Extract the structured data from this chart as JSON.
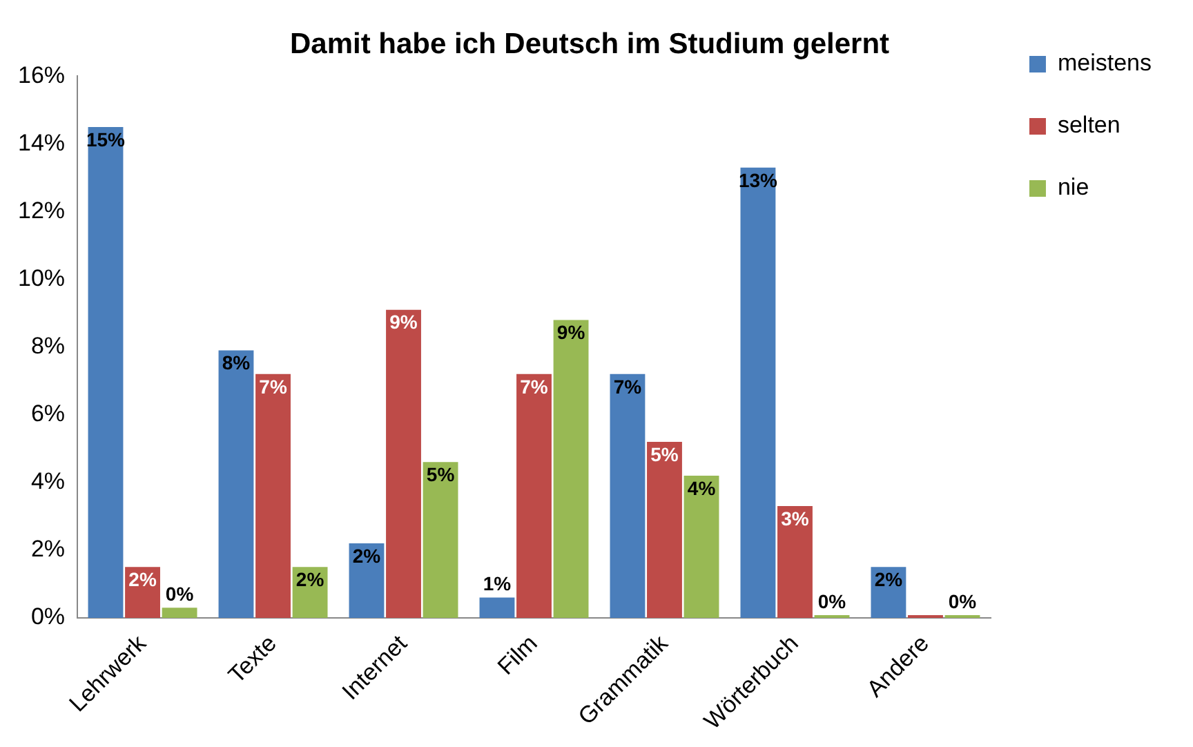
{
  "chart_data": {
    "type": "bar",
    "title": "Damit habe ich Deutsch im Studium gelernt",
    "categories": [
      "Lehrwerk",
      "Texte",
      "Internet",
      "Film",
      "Grammatik",
      "Wörterbuch",
      "Andere"
    ],
    "series": [
      {
        "name": "meistens",
        "color": "#4a7ebb",
        "values": [
          14.5,
          7.9,
          2.2,
          0.6,
          7.2,
          13.3,
          1.5
        ],
        "value_labels": [
          "15%",
          "8%",
          "2%",
          "1%",
          "7%",
          "13%",
          "2%"
        ]
      },
      {
        "name": "selten",
        "color": "#be4b48",
        "values": [
          1.5,
          7.2,
          9.1,
          7.2,
          5.2,
          3.3,
          0
        ],
        "value_labels": [
          "2%",
          "7%",
          "9%",
          "7%",
          "5%",
          "3%",
          null
        ]
      },
      {
        "name": "nie",
        "color": "#98b954",
        "values": [
          0.3,
          1.5,
          4.6,
          8.8,
          4.2,
          0,
          0
        ],
        "value_labels": [
          "0%",
          "2%",
          "5%",
          "9%",
          "4%",
          "0%",
          "0%"
        ]
      }
    ],
    "ylim": [
      0,
      16
    ],
    "yticks": [
      {
        "value": 0,
        "label": "0%"
      },
      {
        "value": 2,
        "label": "2%"
      },
      {
        "value": 4,
        "label": "4%"
      },
      {
        "value": 6,
        "label": "6%"
      },
      {
        "value": 8,
        "label": "8%"
      },
      {
        "value": 10,
        "label": "10%"
      },
      {
        "value": 12,
        "label": "12%"
      },
      {
        "value": 14,
        "label": "14%"
      },
      {
        "value": 16,
        "label": "16%"
      }
    ],
    "grid": false,
    "legend": "top right"
  }
}
